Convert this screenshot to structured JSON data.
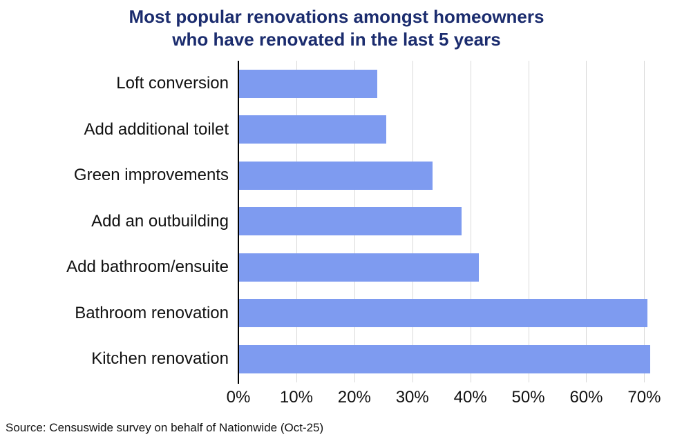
{
  "title_line1": "Most popular renovations amongst homeowners",
  "title_line2": "who have renovated in the last 5 years",
  "source": "Source: Censuswide survey on behalf of Nationwide (Oct-25)",
  "colors": {
    "bar": "#7E9BF0",
    "title": "#1B2C6E",
    "gridline": "#D9D9D9",
    "axis": "#000000"
  },
  "chart_data": {
    "type": "bar",
    "orientation": "horizontal",
    "title": "Most popular renovations amongst homeowners who have renovated in the last 5 years",
    "categories": [
      "Loft conversion",
      "Add additional toilet",
      "Green improvements",
      "Add an outbuilding",
      "Add bathroom/ensuite",
      "Bathroom renovation",
      "Kitchen renovation"
    ],
    "values": [
      24,
      25.5,
      33.5,
      38.5,
      41.5,
      70.5,
      71
    ],
    "xlabel": "",
    "ylabel": "",
    "xlim": [
      0,
      71.5
    ],
    "xticks": [
      0,
      10,
      20,
      30,
      40,
      50,
      60,
      70
    ],
    "xtick_labels": [
      "0%",
      "10%",
      "20%",
      "30%",
      "40%",
      "50%",
      "60%",
      "70%"
    ],
    "grid": "vertical",
    "legend": "none"
  }
}
